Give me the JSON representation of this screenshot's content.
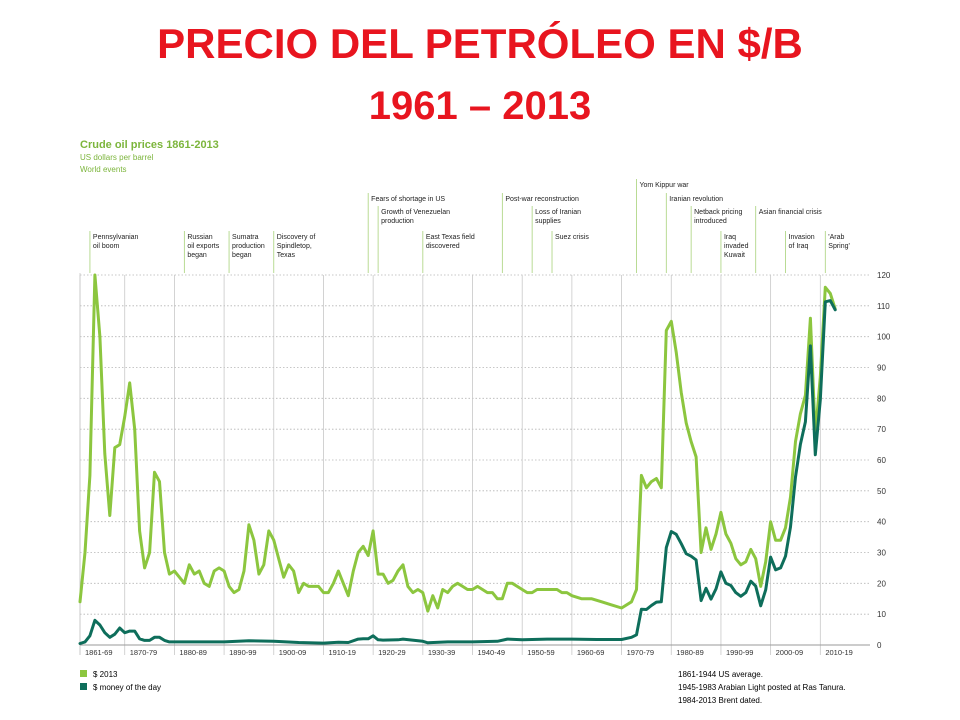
{
  "slide": {
    "title": "PRECIO DEL PETRÓLEO EN $/B",
    "subtitle": "1961 – 2013"
  },
  "colors": {
    "title": "#e8151f",
    "heading": "#7cb53c",
    "series_2013": "#8cc63f",
    "series_money": "#0e6e5b",
    "event_line": "#a8d27a"
  },
  "chart_data": {
    "type": "line",
    "title": "Crude oil prices 1861-2013",
    "subtitle_lines": [
      "US dollars per barrel",
      "World events"
    ],
    "xlim": [
      1861,
      2020
    ],
    "ylim": [
      0,
      120
    ],
    "y_ticks": [
      0,
      10,
      20,
      30,
      40,
      50,
      60,
      70,
      80,
      90,
      100,
      110,
      120
    ],
    "x_ticks": [
      {
        "label": "1861-69",
        "x": 1861
      },
      {
        "label": "1870-79",
        "x": 1870
      },
      {
        "label": "1880-89",
        "x": 1880
      },
      {
        "label": "1890-99",
        "x": 1890
      },
      {
        "label": "1900-09",
        "x": 1900
      },
      {
        "label": "1910-19",
        "x": 1910
      },
      {
        "label": "1920-29",
        "x": 1920
      },
      {
        "label": "1930-39",
        "x": 1930
      },
      {
        "label": "1940-49",
        "x": 1940
      },
      {
        "label": "1950-59",
        "x": 1950
      },
      {
        "label": "1960-69",
        "x": 1960
      },
      {
        "label": "1970-79",
        "x": 1970
      },
      {
        "label": "1980-89",
        "x": 1980
      },
      {
        "label": "1990-99",
        "x": 1990
      },
      {
        "label": "2000-09",
        "x": 2000
      },
      {
        "label": "2010-19",
        "x": 2010
      }
    ],
    "events": [
      {
        "year": 1863,
        "tier": 3,
        "lines": [
          "Pennsylvanian",
          "oil boom"
        ]
      },
      {
        "year": 1882,
        "tier": 3,
        "lines": [
          "Russian",
          "oil exports",
          "began"
        ]
      },
      {
        "year": 1891,
        "tier": 3,
        "lines": [
          "Sumatra",
          "production",
          "began"
        ]
      },
      {
        "year": 1900,
        "tier": 3,
        "lines": [
          "Discovery of",
          "Spindletop,",
          "Texas"
        ]
      },
      {
        "year": 1919,
        "tier": 1,
        "lines": [
          "Fears of shortage in US"
        ]
      },
      {
        "year": 1921,
        "tier": 2,
        "lines": [
          "Growth of Venezuelan",
          "production"
        ]
      },
      {
        "year": 1930,
        "tier": 3,
        "lines": [
          "East Texas field",
          "discovered"
        ]
      },
      {
        "year": 1946,
        "tier": 1,
        "lines": [
          "Post-war reconstruction"
        ]
      },
      {
        "year": 1952,
        "tier": 2,
        "lines": [
          "Loss of Iranian",
          "supplies"
        ]
      },
      {
        "year": 1956,
        "tier": 3,
        "lines": [
          "Suez crisis"
        ]
      },
      {
        "year": 1973,
        "tier": 0,
        "lines": [
          "Yom Kippur war"
        ]
      },
      {
        "year": 1979,
        "tier": 1,
        "lines": [
          "Iranian revolution"
        ]
      },
      {
        "year": 1984,
        "tier": 2,
        "lines": [
          "Netback pricing",
          "introduced"
        ]
      },
      {
        "year": 1990,
        "tier": 3,
        "lines": [
          "Iraq",
          "invaded",
          "Kuwait"
        ]
      },
      {
        "year": 1997,
        "tier": 2,
        "lines": [
          "Asian financial crisis"
        ]
      },
      {
        "year": 2003,
        "tier": 3,
        "lines": [
          "Invasion",
          "of Iraq"
        ]
      },
      {
        "year": 2011,
        "tier": 3,
        "lines": [
          "'Arab",
          "Spring'"
        ]
      }
    ],
    "series": [
      {
        "name": "$ 2013",
        "points": [
          [
            1861,
            14
          ],
          [
            1862,
            30
          ],
          [
            1863,
            55
          ],
          [
            1864,
            120
          ],
          [
            1865,
            100
          ],
          [
            1866,
            62
          ],
          [
            1867,
            42
          ],
          [
            1868,
            64
          ],
          [
            1869,
            65
          ],
          [
            1870,
            74
          ],
          [
            1871,
            85
          ],
          [
            1872,
            70
          ],
          [
            1873,
            37
          ],
          [
            1874,
            25
          ],
          [
            1875,
            30
          ],
          [
            1876,
            56
          ],
          [
            1877,
            53
          ],
          [
            1878,
            30
          ],
          [
            1879,
            23
          ],
          [
            1880,
            24
          ],
          [
            1881,
            22
          ],
          [
            1882,
            20
          ],
          [
            1883,
            26
          ],
          [
            1884,
            23
          ],
          [
            1885,
            24
          ],
          [
            1886,
            20
          ],
          [
            1887,
            19
          ],
          [
            1888,
            24
          ],
          [
            1889,
            25
          ],
          [
            1890,
            24
          ],
          [
            1891,
            19
          ],
          [
            1892,
            17
          ],
          [
            1893,
            18
          ],
          [
            1894,
            24
          ],
          [
            1895,
            39
          ],
          [
            1896,
            34
          ],
          [
            1897,
            23
          ],
          [
            1898,
            26
          ],
          [
            1899,
            37
          ],
          [
            1900,
            34
          ],
          [
            1901,
            28
          ],
          [
            1902,
            22
          ],
          [
            1903,
            26
          ],
          [
            1904,
            24
          ],
          [
            1905,
            17
          ],
          [
            1906,
            20
          ],
          [
            1907,
            19
          ],
          [
            1908,
            19
          ],
          [
            1909,
            19
          ],
          [
            1910,
            17
          ],
          [
            1911,
            17
          ],
          [
            1912,
            20
          ],
          [
            1913,
            24
          ],
          [
            1914,
            20
          ],
          [
            1915,
            16
          ],
          [
            1916,
            24
          ],
          [
            1917,
            30
          ],
          [
            1918,
            32
          ],
          [
            1919,
            29
          ],
          [
            1920,
            37
          ],
          [
            1921,
            23
          ],
          [
            1922,
            23
          ],
          [
            1923,
            20
          ],
          [
            1924,
            21
          ],
          [
            1925,
            24
          ],
          [
            1926,
            26
          ],
          [
            1927,
            19
          ],
          [
            1928,
            17
          ],
          [
            1929,
            18
          ],
          [
            1930,
            17
          ],
          [
            1931,
            11
          ],
          [
            1932,
            16
          ],
          [
            1933,
            12
          ],
          [
            1934,
            18
          ],
          [
            1935,
            17
          ],
          [
            1936,
            19
          ],
          [
            1937,
            20
          ],
          [
            1938,
            19
          ],
          [
            1939,
            18
          ],
          [
            1940,
            18
          ],
          [
            1941,
            19
          ],
          [
            1942,
            18
          ],
          [
            1943,
            17
          ],
          [
            1944,
            17
          ],
          [
            1945,
            15
          ],
          [
            1946,
            15
          ],
          [
            1947,
            20
          ],
          [
            1948,
            20
          ],
          [
            1949,
            19
          ],
          [
            1950,
            18
          ],
          [
            1951,
            17
          ],
          [
            1952,
            17
          ],
          [
            1953,
            18
          ],
          [
            1954,
            18
          ],
          [
            1955,
            18
          ],
          [
            1956,
            18
          ],
          [
            1957,
            18
          ],
          [
            1958,
            17
          ],
          [
            1959,
            17
          ],
          [
            1960,
            16
          ],
          [
            1962,
            15
          ],
          [
            1964,
            15
          ],
          [
            1966,
            14
          ],
          [
            1968,
            13
          ],
          [
            1970,
            12
          ],
          [
            1972,
            14
          ],
          [
            1973,
            18
          ],
          [
            1974,
            55
          ],
          [
            1975,
            51
          ],
          [
            1976,
            53
          ],
          [
            1977,
            54
          ],
          [
            1978,
            51
          ],
          [
            1979,
            102
          ],
          [
            1980,
            105
          ],
          [
            1981,
            95
          ],
          [
            1982,
            82
          ],
          [
            1983,
            72
          ],
          [
            1984,
            66
          ],
          [
            1985,
            61
          ],
          [
            1986,
            30
          ],
          [
            1987,
            38
          ],
          [
            1988,
            31
          ],
          [
            1989,
            36
          ],
          [
            1990,
            43
          ],
          [
            1991,
            36
          ],
          [
            1992,
            33
          ],
          [
            1993,
            28
          ],
          [
            1994,
            26
          ],
          [
            1995,
            27
          ],
          [
            1996,
            31
          ],
          [
            1997,
            28
          ],
          [
            1998,
            19
          ],
          [
            1999,
            27
          ],
          [
            2000,
            40
          ],
          [
            2001,
            34
          ],
          [
            2002,
            34
          ],
          [
            2003,
            38
          ],
          [
            2004,
            48
          ],
          [
            2005,
            66
          ],
          [
            2006,
            75
          ],
          [
            2007,
            81
          ],
          [
            2008,
            106
          ],
          [
            2009,
            68
          ],
          [
            2010,
            87
          ],
          [
            2011,
            116
          ],
          [
            2012,
            114
          ],
          [
            2013,
            109
          ]
        ]
      },
      {
        "name": "$ money of the day",
        "points": [
          [
            1861,
            0.5
          ],
          [
            1862,
            1
          ],
          [
            1863,
            3
          ],
          [
            1864,
            8
          ],
          [
            1865,
            6.5
          ],
          [
            1866,
            4
          ],
          [
            1867,
            2.5
          ],
          [
            1868,
            3.5
          ],
          [
            1869,
            5.5
          ],
          [
            1870,
            4
          ],
          [
            1871,
            4.5
          ],
          [
            1872,
            4.5
          ],
          [
            1873,
            2
          ],
          [
            1874,
            1.5
          ],
          [
            1875,
            1.5
          ],
          [
            1876,
            2.5
          ],
          [
            1877,
            2.5
          ],
          [
            1878,
            1.5
          ],
          [
            1879,
            1
          ],
          [
            1880,
            1
          ],
          [
            1885,
            1
          ],
          [
            1890,
            1
          ],
          [
            1895,
            1.4
          ],
          [
            1900,
            1.2
          ],
          [
            1905,
            0.8
          ],
          [
            1910,
            0.6
          ],
          [
            1913,
            0.9
          ],
          [
            1915,
            0.8
          ],
          [
            1917,
            1.9
          ],
          [
            1918,
            2
          ],
          [
            1919,
            2
          ],
          [
            1920,
            3
          ],
          [
            1921,
            1.7
          ],
          [
            1922,
            1.6
          ],
          [
            1925,
            1.7
          ],
          [
            1926,
            1.9
          ],
          [
            1930,
            1.2
          ],
          [
            1931,
            0.7
          ],
          [
            1935,
            1
          ],
          [
            1940,
            1
          ],
          [
            1945,
            1.2
          ],
          [
            1947,
            1.9
          ],
          [
            1950,
            1.7
          ],
          [
            1955,
            1.9
          ],
          [
            1960,
            1.9
          ],
          [
            1965,
            1.8
          ],
          [
            1970,
            1.8
          ],
          [
            1972,
            2.5
          ],
          [
            1973,
            3.3
          ],
          [
            1974,
            11.6
          ],
          [
            1975,
            11.5
          ],
          [
            1976,
            12.8
          ],
          [
            1977,
            13.9
          ],
          [
            1978,
            14
          ],
          [
            1979,
            31.6
          ],
          [
            1980,
            36.8
          ],
          [
            1981,
            35.9
          ],
          [
            1982,
            32.9
          ],
          [
            1983,
            29.6
          ],
          [
            1984,
            28.8
          ],
          [
            1985,
            27.6
          ],
          [
            1986,
            14.4
          ],
          [
            1987,
            18.4
          ],
          [
            1988,
            14.9
          ],
          [
            1989,
            18.2
          ],
          [
            1990,
            23.7
          ],
          [
            1991,
            20
          ],
          [
            1992,
            19.3
          ],
          [
            1993,
            17
          ],
          [
            1994,
            15.8
          ],
          [
            1995,
            17
          ],
          [
            1996,
            20.7
          ],
          [
            1997,
            19.1
          ],
          [
            1998,
            12.7
          ],
          [
            1999,
            17.9
          ],
          [
            2000,
            28.5
          ],
          [
            2001,
            24.4
          ],
          [
            2002,
            25
          ],
          [
            2003,
            28.8
          ],
          [
            2004,
            38.3
          ],
          [
            2005,
            54.5
          ],
          [
            2006,
            65.1
          ],
          [
            2007,
            72.4
          ],
          [
            2008,
            97
          ],
          [
            2009,
            61.7
          ],
          [
            2010,
            79.5
          ],
          [
            2011,
            111.3
          ],
          [
            2012,
            111.7
          ],
          [
            2013,
            108.7
          ]
        ]
      }
    ],
    "legend": [
      {
        "label": "$ 2013",
        "series": 0
      },
      {
        "label": "$ money of the day",
        "series": 1
      }
    ],
    "footnotes": [
      "1861-1944 US average.",
      "1945-1983 Arabian Light posted at Ras Tanura.",
      "1984-2013 Brent dated."
    ],
    "grid": "vertical-decades"
  }
}
